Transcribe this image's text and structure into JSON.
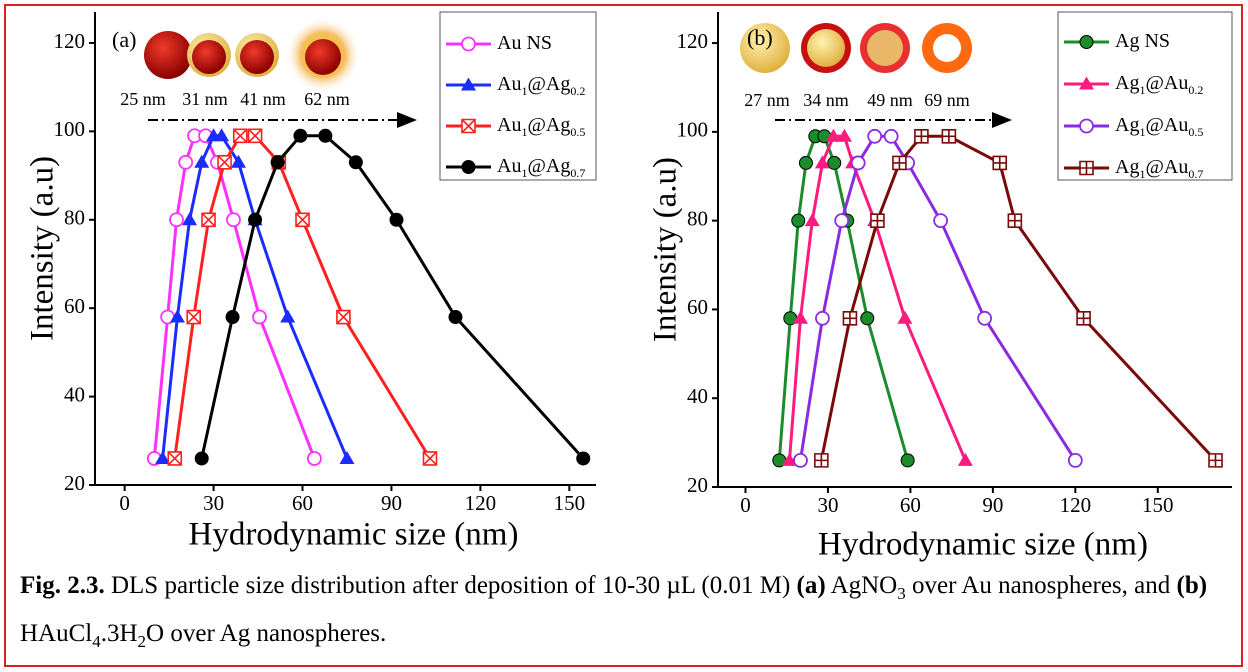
{
  "chart_data": [
    {
      "type": "line",
      "panel_label": "(a)",
      "x_label": "Hydrodynamic size (nm)",
      "y_label": "Intensity (a.u)",
      "size_labels": [
        "25 nm",
        "31 nm",
        "41 nm",
        "62 nm"
      ],
      "xlim": [
        -10,
        159
      ],
      "ylim": [
        20,
        127
      ],
      "xticks": [
        0,
        30,
        60,
        90,
        120,
        150
      ],
      "yticks": [
        20,
        40,
        60,
        80,
        100,
        120
      ],
      "series": [
        {
          "name": "Au NS",
          "color": "#ff30ff",
          "marker": "circle-open",
          "x": [
            10,
            14.5,
            17.5,
            20.6,
            23.6,
            27.3,
            31.3,
            36.7,
            45.5,
            64
          ],
          "values": [
            26,
            58,
            80,
            93,
            99,
            99,
            93,
            80,
            58,
            26
          ]
        },
        {
          "name": "Au1@Ag0.2",
          "color": "#1a2cff",
          "marker": "triangle",
          "x": [
            12.8,
            17.8,
            21.9,
            26,
            30,
            32.7,
            38.4,
            44,
            55,
            75
          ],
          "values": [
            26,
            58,
            80,
            93,
            99,
            99,
            93,
            80,
            58,
            26
          ]
        },
        {
          "name": "Au1@Ag0.5",
          "color": "#ff2020",
          "marker": "square-x",
          "x": [
            16.9,
            23.3,
            28.3,
            33.7,
            39,
            44,
            52,
            60,
            73.8,
            103
          ],
          "values": [
            26,
            58,
            80,
            93,
            99,
            99,
            93,
            80,
            58,
            26
          ]
        },
        {
          "name": "Au1@Ag0.7",
          "color": "#000000",
          "marker": "circle",
          "x": [
            26,
            36.4,
            44,
            51.6,
            59.3,
            67.7,
            78,
            91.7,
            111.6,
            154.7
          ],
          "values": [
            26,
            58,
            80,
            93,
            99,
            99,
            93,
            80,
            58,
            26
          ]
        }
      ]
    },
    {
      "type": "line",
      "panel_label": "(b)",
      "x_label": "Hydrodynamic size (nm)",
      "y_label": "Intensity (a.u)",
      "size_labels": [
        "27 nm",
        "34 nm",
        "49 nm",
        "69 nm"
      ],
      "xlim": [
        -10,
        177
      ],
      "ylim": [
        20,
        127
      ],
      "xticks": [
        0,
        30,
        60,
        90,
        120,
        150
      ],
      "yticks": [
        20,
        40,
        60,
        80,
        100,
        120
      ],
      "series": [
        {
          "name": "Ag NS",
          "color": "#1a8c2a",
          "marker": "circle",
          "x": [
            12.3,
            16.3,
            19.2,
            22,
            25.4,
            28.7,
            32.3,
            37,
            44.3,
            59
          ],
          "values": [
            26,
            58,
            80,
            93,
            99,
            99,
            93,
            80,
            58,
            26
          ]
        },
        {
          "name": "Ag1@Au0.2",
          "color": "#ff1a80",
          "marker": "triangle",
          "x": [
            16,
            20,
            24.3,
            28,
            32,
            36,
            39,
            47,
            58,
            80
          ],
          "values": [
            26,
            58,
            80,
            93,
            99,
            99,
            93,
            80,
            58,
            26
          ]
        },
        {
          "name": "Ag1@Au0.5",
          "color": "#8a2be2",
          "marker": "circle-open",
          "x": [
            20,
            28,
            35,
            41,
            47,
            53,
            59,
            71,
            87,
            120
          ],
          "values": [
            26,
            58,
            80,
            93,
            99,
            99,
            93,
            80,
            58,
            26
          ]
        },
        {
          "name": "Ag1@Au0.7",
          "color": "#7a0a0a",
          "marker": "square-plus",
          "x": [
            27.6,
            38,
            48,
            56,
            64,
            74,
            92.5,
            98,
            123,
            171
          ],
          "values": [
            26,
            58,
            80,
            93,
            99,
            99,
            93,
            80,
            58,
            26
          ]
        }
      ]
    }
  ],
  "caption": [
    "Fig. 2.3.",
    "DLS particle size distribution after deposition of 10-30 µL (0.01 M)",
    "(a)",
    "AgNO",
    "3",
    "over Au nanospheres, and",
    "(b)",
    "HAuCl",
    "4",
    ".3H",
    "2",
    "O over Ag nanospheres."
  ]
}
